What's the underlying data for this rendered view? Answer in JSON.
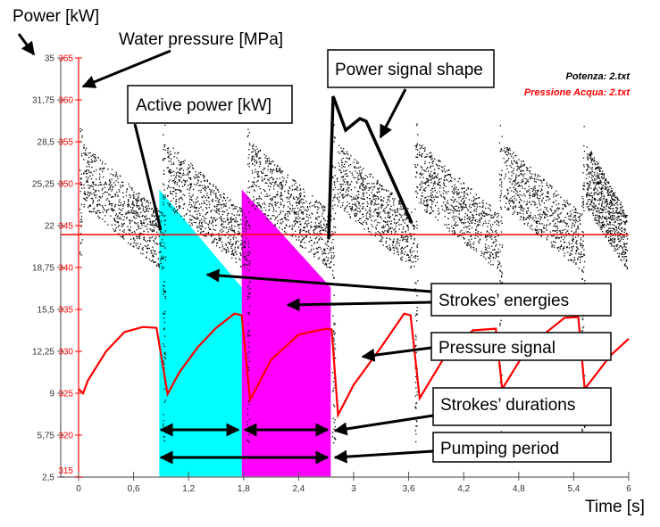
{
  "chart_data": {
    "type": "scatter",
    "xlabel": "Time [s]",
    "ylabel_left": "Power [kW]",
    "ylabel_right": "Water pressure [MPa]",
    "xlim": [
      0,
      6
    ],
    "ylim_left": [
      2.5,
      35
    ],
    "ylim_right": [
      315,
      365
    ],
    "x_ticks": [
      "0",
      "0,6",
      "1,2",
      "1,8",
      "2,4",
      "3",
      "3,6",
      "4,2",
      "4,8",
      "5,4",
      "6"
    ],
    "x_tick_values": [
      0,
      0.6,
      1.2,
      1.8,
      2.4,
      3,
      3.6,
      4.2,
      4.8,
      5.4,
      6
    ],
    "y_left_ticks": [
      "35",
      "31,75",
      "28,5",
      "25,25",
      "22",
      "18,75",
      "15,5",
      "12,25",
      "9",
      "5,75",
      "2,5"
    ],
    "y_left_values": [
      35,
      31.75,
      28.5,
      25.25,
      22,
      18.75,
      15.5,
      12.25,
      9,
      5.75,
      2.5
    ],
    "y_right_ticks": [
      "365",
      "360",
      "355",
      "350",
      "345",
      "340",
      "335",
      "330",
      "325",
      "320",
      "315"
    ],
    "y_right_values": [
      365,
      360,
      355,
      350,
      345,
      340,
      335,
      330,
      325,
      320,
      315
    ],
    "grid": false,
    "legend_position": "top-right",
    "series": [
      {
        "name": "Potenza: 2.txt",
        "axis": "left",
        "color": "#000000",
        "kind": "scatter",
        "stroke_starts_s": [
          0.02,
          0.93,
          1.85,
          2.78,
          3.68,
          4.6,
          5.5
        ],
        "band_top_kw": [
          28.5,
          23
        ],
        "band_bottom_kw": [
          23.5,
          18.5
        ]
      },
      {
        "name": "Pressione Acqua: 2.txt",
        "axis": "right",
        "color": "#ff0000",
        "kind": "line",
        "points": [
          [
            0,
            325.5
          ],
          [
            0.05,
            325
          ],
          [
            0.1,
            326.5
          ],
          [
            0.3,
            330
          ],
          [
            0.5,
            332.3
          ],
          [
            0.7,
            332.9
          ],
          [
            0.85,
            332.8
          ],
          [
            0.97,
            324.9
          ],
          [
            1.1,
            327.5
          ],
          [
            1.3,
            330.5
          ],
          [
            1.5,
            332.8
          ],
          [
            1.7,
            334.5
          ],
          [
            1.78,
            334.3
          ],
          [
            1.87,
            324.2
          ],
          [
            2.1,
            329
          ],
          [
            2.4,
            332
          ],
          [
            2.7,
            332.7
          ],
          [
            2.76,
            332.6
          ],
          [
            2.83,
            322.4
          ],
          [
            3.0,
            326
          ],
          [
            3.3,
            330.5
          ],
          [
            3.55,
            334.5
          ],
          [
            3.62,
            334.3
          ],
          [
            3.72,
            324.4
          ],
          [
            4.0,
            329.5
          ],
          [
            4.3,
            332.5
          ],
          [
            4.55,
            332.7
          ],
          [
            4.62,
            325.5
          ],
          [
            4.9,
            330.5
          ],
          [
            5.3,
            334
          ],
          [
            5.45,
            334.1
          ],
          [
            5.52,
            325.5
          ],
          [
            5.8,
            329.5
          ],
          [
            6.0,
            331.5
          ]
        ]
      }
    ],
    "reference_line_kw": 21.3,
    "shaded_regions": [
      {
        "color": "#00ffff",
        "x": [
          0.88,
          1.78
        ],
        "top_kw": [
          24.8,
          17.2
        ]
      },
      {
        "color": "#ff00ff",
        "x": [
          1.78,
          2.75
        ],
        "top_kw": [
          24.8,
          17.2
        ]
      }
    ]
  },
  "annotations": {
    "power_axis": "Power [kW]",
    "water_pressure": "Water pressure [MPa]",
    "active_power": "Active power [kW]",
    "power_signal_shape": "Power signal shape",
    "strokes_energies": "Strokes’ energies",
    "pressure_signal": "Pressure signal",
    "strokes_durations": "Strokes’ durations",
    "pumping_period": "Pumping period",
    "time_axis": "Time [s]"
  },
  "legend": {
    "power": "Potenza: 2.txt",
    "pressure": "Pressione Acqua: 2.txt"
  }
}
